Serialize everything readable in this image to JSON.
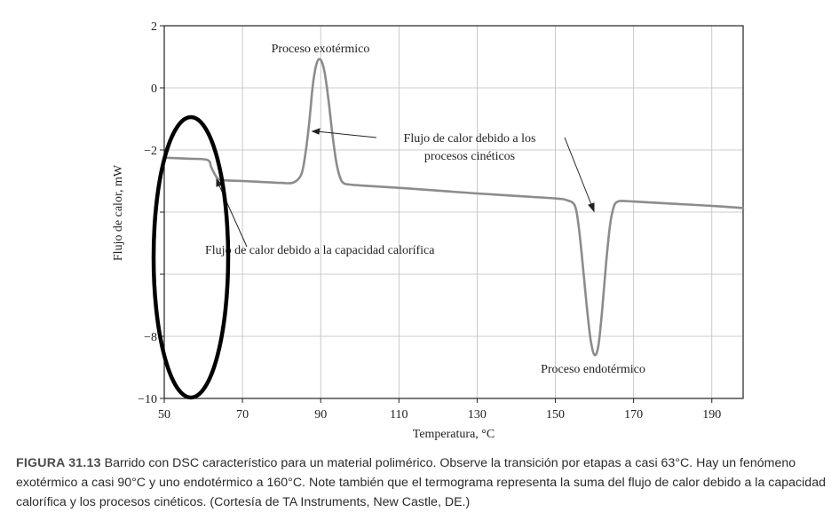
{
  "chart_data": {
    "type": "line",
    "title": "",
    "xlabel": "Temperatura, °C",
    "ylabel": "Flujo de calor, mW",
    "xlim": [
      50,
      198
    ],
    "ylim": [
      -10,
      2
    ],
    "x_ticks": [
      50,
      70,
      90,
      110,
      130,
      150,
      170,
      190
    ],
    "x_tick_labels": [
      "50",
      "70",
      "90",
      "110",
      "130",
      "150",
      "170",
      "190"
    ],
    "y_ticks": [
      2,
      0,
      -2,
      -4,
      -6,
      -8,
      -10
    ],
    "y_tick_labels": [
      "2",
      "0",
      "−2",
      "",
      "",
      "−8",
      "−10"
    ],
    "grid": true,
    "line_color": "#8c8c8c",
    "series": [
      {
        "x": [
          50,
          56,
          61,
          62,
          63,
          64,
          66,
          70,
          75,
          80,
          83,
          85,
          86,
          87,
          88,
          89,
          90,
          91,
          92,
          93,
          94,
          95,
          96,
          98,
          100,
          110,
          120,
          130,
          140,
          150,
          153,
          155,
          156,
          157,
          158,
          159,
          160,
          161,
          162,
          163,
          164,
          165,
          166,
          167,
          170,
          180,
          190,
          198
        ],
        "y": [
          -2.25,
          -2.28,
          -2.32,
          -2.55,
          -2.8,
          -2.95,
          -2.98,
          -3.0,
          -3.03,
          -3.06,
          -3.05,
          -2.8,
          -2.2,
          -1.2,
          0.1,
          0.8,
          0.9,
          0.5,
          -0.4,
          -1.5,
          -2.4,
          -2.9,
          -3.08,
          -3.12,
          -3.14,
          -3.22,
          -3.31,
          -3.4,
          -3.48,
          -3.56,
          -3.62,
          -3.8,
          -4.5,
          -5.7,
          -7.0,
          -8.1,
          -8.6,
          -8.3,
          -7.1,
          -5.6,
          -4.4,
          -3.8,
          -3.66,
          -3.64,
          -3.66,
          -3.73,
          -3.8,
          -3.87
        ]
      }
    ],
    "annotations": [
      {
        "text": "Proceso exotérmico"
      },
      {
        "text": "Flujo de calor debido a los"
      },
      {
        "text": "procesos cinéticos"
      },
      {
        "text": "Flujo de calor debido a la capacidad calorífica"
      },
      {
        "text": "Proceso endotérmico"
      }
    ]
  },
  "caption": {
    "label": "FIGURA 31.13",
    "text": "Barrido con DSC característico para un material polimérico. Observe la transición por etapas a casi 63°C. Hay un fenómeno exotérmico a casi 90°C y uno endotérmico a 160°C. Note también que el termograma representa la suma del flujo de calor debido a la capacidad calorífica y los procesos cinéticos. (Cortesía de TA Instruments, New Castle, DE.)"
  }
}
